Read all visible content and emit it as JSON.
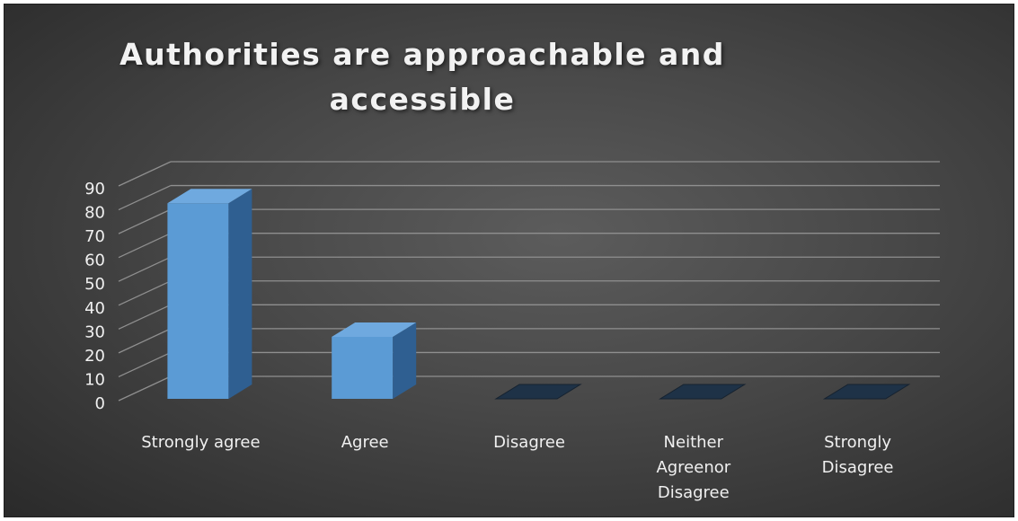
{
  "chart_data": {
    "type": "bar",
    "style": "3d-column",
    "title": "Authorities are approachable and accessible",
    "categories": [
      "Strongly agree",
      "Agree",
      "Disagree",
      "Neither Agreenor Disagree",
      "Strongly Disagree"
    ],
    "category_label_lines": [
      [
        "Strongly agree"
      ],
      [
        "Agree"
      ],
      [
        "Disagree"
      ],
      [
        "Neither",
        "Agreenor",
        "Disagree"
      ],
      [
        "Strongly",
        "Disagree"
      ]
    ],
    "values": [
      82,
      26,
      0,
      0,
      0
    ],
    "ylim": [
      0,
      90
    ],
    "yticks": [
      "0",
      "10",
      "20",
      "30",
      "40",
      "50",
      "60",
      "70",
      "80",
      "90"
    ],
    "xlabel": "",
    "ylabel": "",
    "grid": true,
    "legend": "none",
    "colors": {
      "bar_front": "#5b9bd5",
      "bar_top": "#6fa9df",
      "bar_side": "#2f5f91",
      "zero_bar": "#1e3247",
      "gridline": "#8f8f8f",
      "text": "#f0f0f0",
      "background": "#474747"
    }
  }
}
